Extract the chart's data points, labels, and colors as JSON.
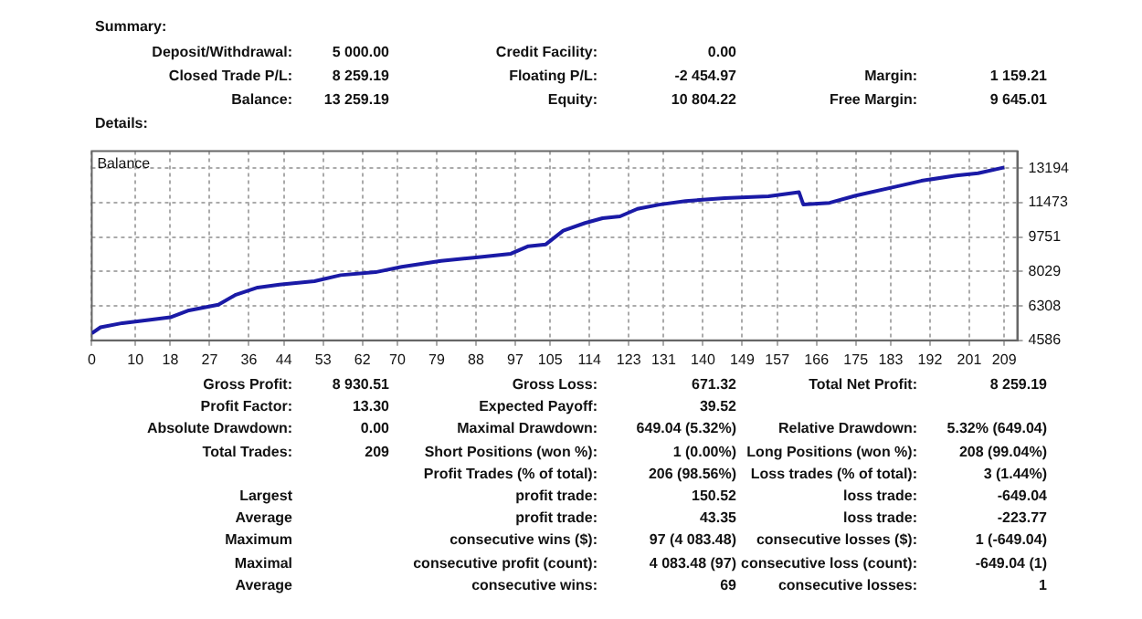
{
  "chart_data": [
    {
      "type": "other",
      "title": "Summary:",
      "annotations": [
        "Deposit/Withdrawal:",
        "5 000.00",
        "Credit Facility:",
        "0.00",
        null,
        null,
        "Closed Trade P/L:",
        "8 259.19",
        "Floating P/L:",
        "-2 454.97",
        "Margin:",
        "1 159.21",
        "Balance:",
        "13 259.19",
        "Equity:",
        "10 804.22",
        "Free Margin:",
        "9 645.01"
      ]
    },
    {
      "type": "line",
      "title": "Details:",
      "subtitle": "Balance",
      "x": [
        0,
        2,
        7,
        13,
        18,
        22,
        29,
        33,
        38,
        43,
        51,
        57,
        65,
        71,
        80,
        88,
        96,
        100,
        104,
        108,
        113,
        117,
        121,
        125,
        130,
        136,
        145,
        155,
        162,
        163,
        169,
        175,
        184,
        190,
        198,
        203,
        209
      ],
      "values": [
        4940,
        5240,
        5450,
        5600,
        5740,
        6070,
        6370,
        6870,
        7230,
        7380,
        7550,
        7850,
        8000,
        8270,
        8560,
        8740,
        8920,
        9300,
        9390,
        10080,
        10460,
        10700,
        10790,
        11170,
        11380,
        11560,
        11710,
        11800,
        12000,
        11380,
        11470,
        11830,
        12270,
        12570,
        12840,
        12950,
        13240
      ],
      "color": "#1a1aa6",
      "xlim": [
        0,
        212
      ],
      "ylim": [
        4586,
        14054
      ],
      "xticks": [
        0,
        10,
        18,
        27,
        36,
        44,
        53,
        62,
        70,
        79,
        88,
        97,
        105,
        114,
        123,
        131,
        140,
        149,
        157,
        166,
        175,
        183,
        192,
        201,
        209
      ],
      "yticks": [
        4586,
        6308,
        8029,
        9751,
        11473,
        13194
      ],
      "grid": true
    },
    {
      "type": "other",
      "annotations": [
        "Gross Profit:",
        "8 930.51",
        "Gross Loss:",
        "671.32",
        "Total Net Profit:",
        "8 259.19",
        "Profit Factor:",
        "13.30",
        "Expected Payoff:",
        "39.52",
        null,
        null,
        "Absolute Drawdown:",
        "0.00",
        "Maximal Drawdown:",
        "649.04 (5.32%)",
        "Relative Drawdown:",
        "5.32% (649.04)",
        "Total Trades:",
        "209",
        "Short Positions (won %):",
        "1 (0.00%)",
        "Long Positions (won %):",
        "208 (99.04%)",
        null,
        null,
        "Profit Trades (% of total):",
        "206 (98.56%)",
        "Loss trades (% of total):",
        "3 (1.44%)",
        "Largest",
        null,
        "profit trade:",
        "150.52",
        "loss trade:",
        "-649.04",
        "Average",
        null,
        "profit trade:",
        "43.35",
        "loss trade:",
        "-223.77",
        "Maximum",
        null,
        "consecutive wins ($):",
        "97 (4 083.48)",
        "consecutive losses ($):",
        "1 (-649.04)",
        "Maximal",
        null,
        "consecutive profit (count):",
        "4 083.48 (97)",
        "consecutive loss (count):",
        "-649.04 (1)",
        "Average",
        null,
        "consecutive wins:",
        "69",
        "consecutive losses:",
        "1"
      ]
    }
  ]
}
